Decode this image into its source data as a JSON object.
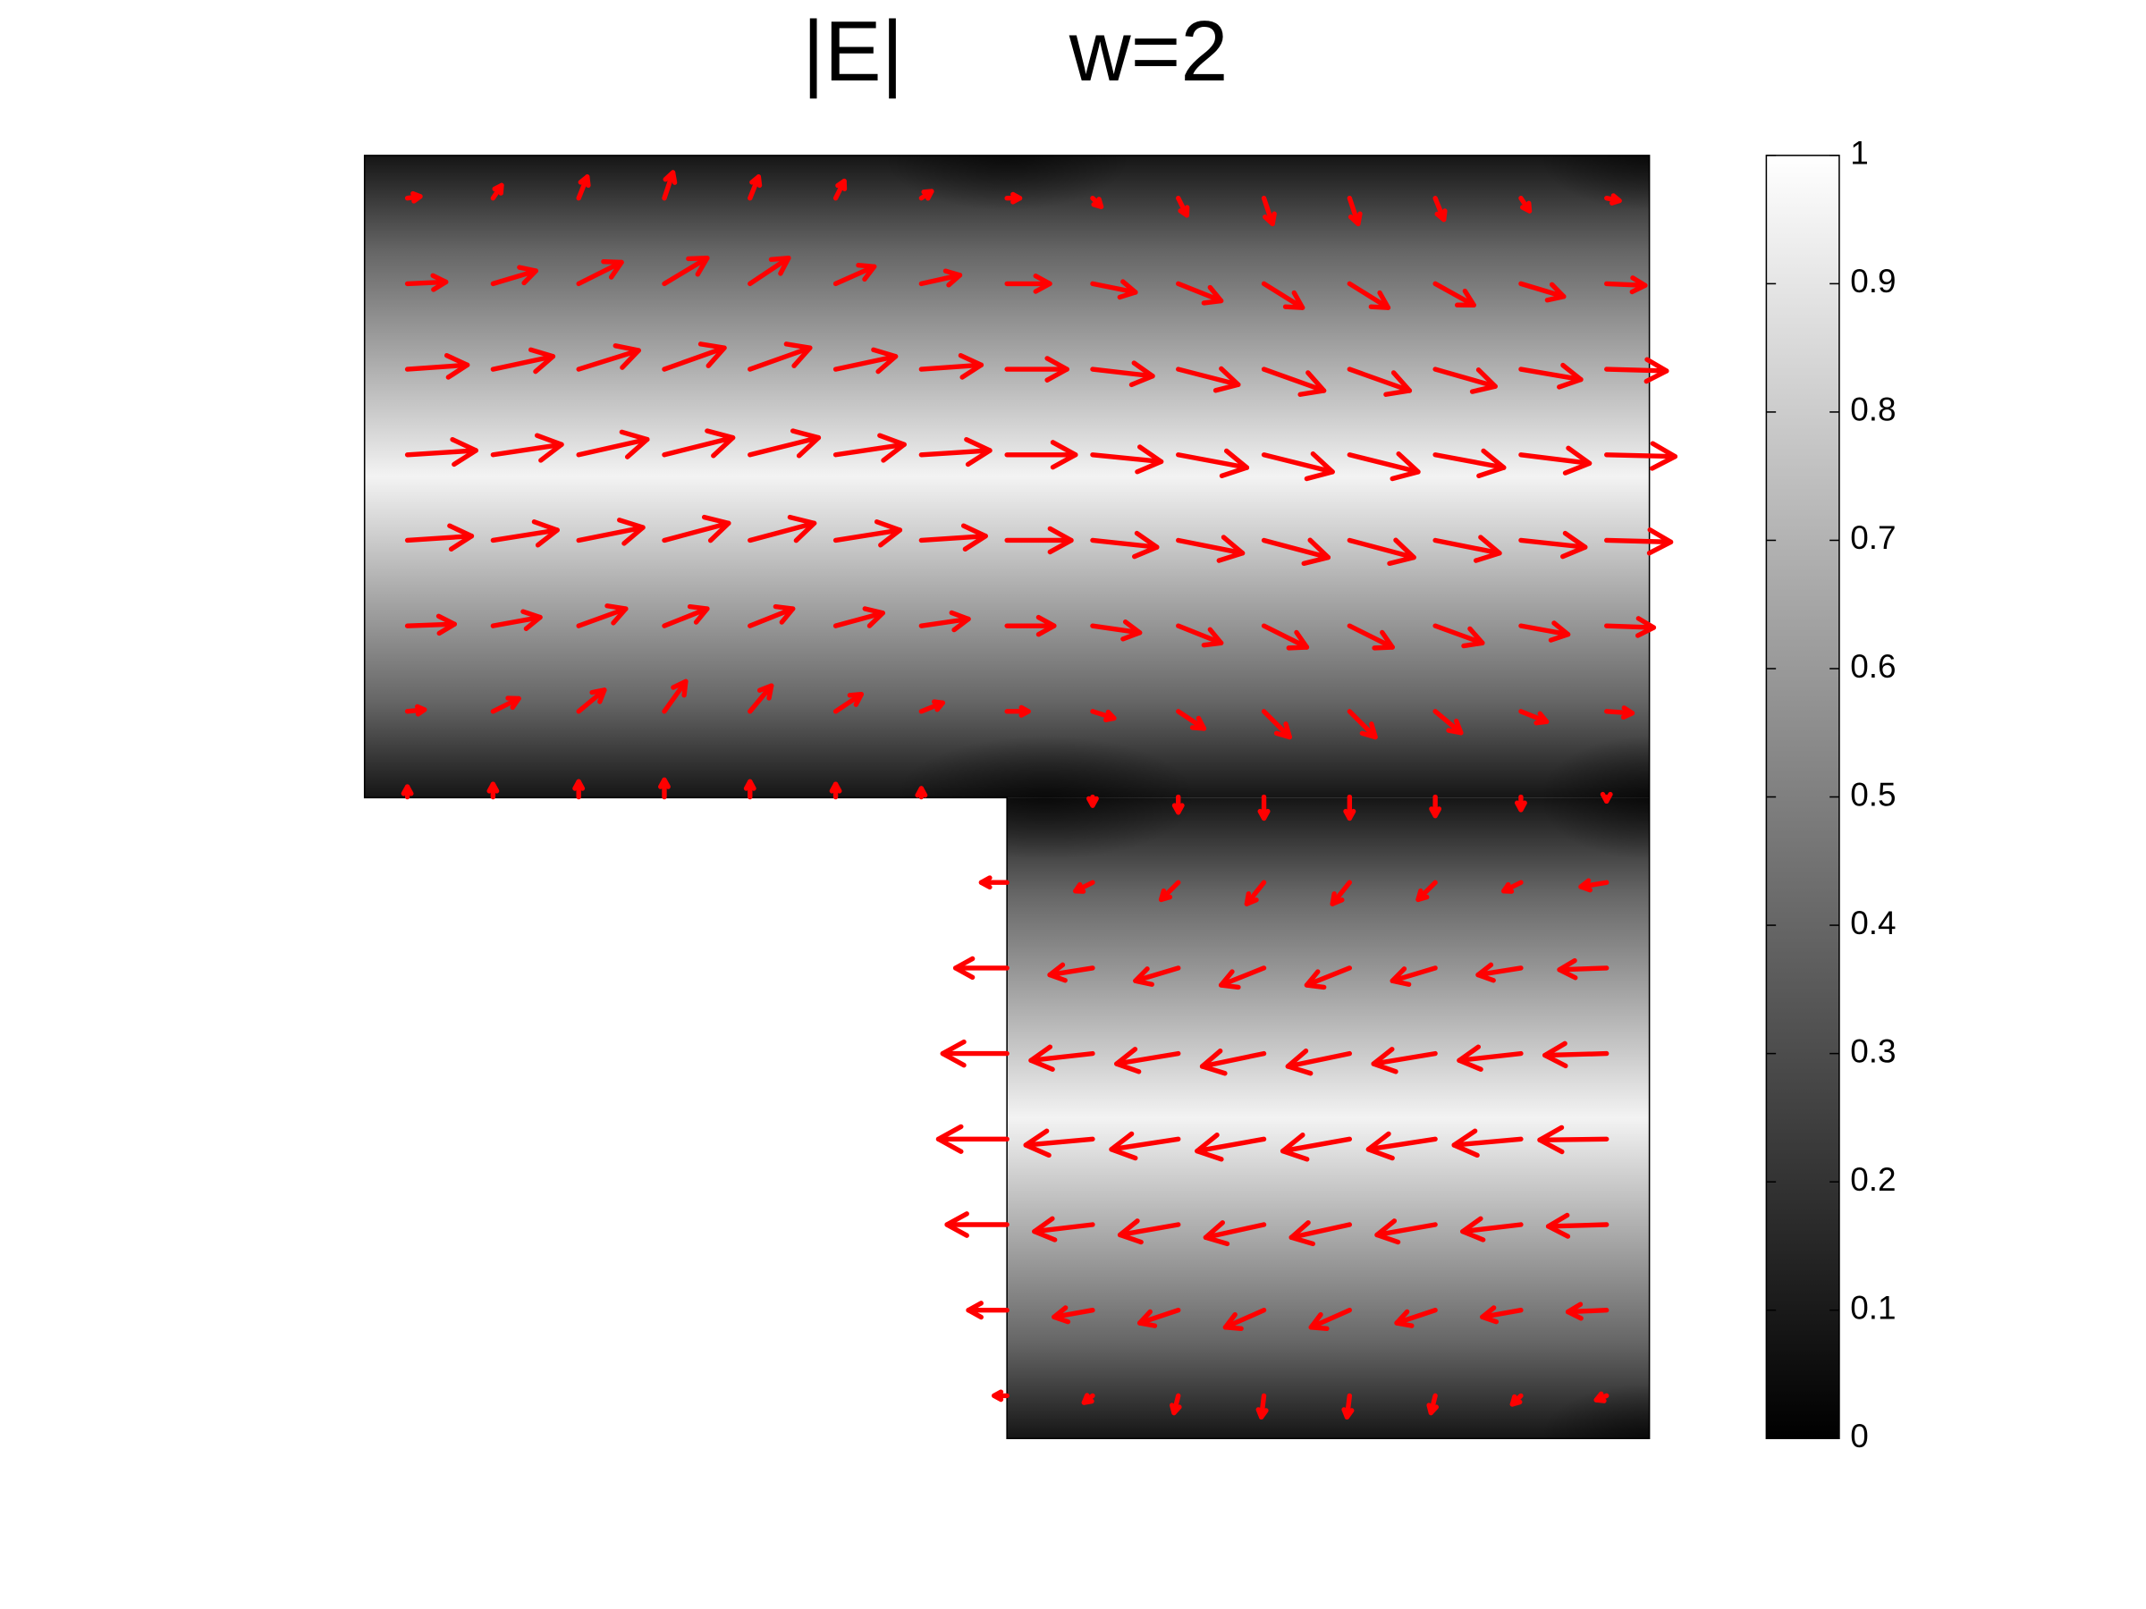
{
  "chart_data": {
    "type": "quiver",
    "title": [
      "|E|",
      "w=2"
    ],
    "color": "#ff0000",
    "colormap": "gray",
    "xlim": [
      0,
      15
    ],
    "ylim": [
      15,
      0
    ],
    "colorbar": {
      "lim": [
        0,
        1
      ],
      "ticks": [
        0,
        0.1,
        0.2,
        0.3,
        0.4,
        0.5,
        0.6,
        0.7,
        0.8,
        0.9,
        1
      ]
    },
    "rows": [
      {
        "y": 0.5,
        "x": [
          0.5,
          1.5,
          2.5,
          3.5,
          4.5,
          5.5,
          6.5,
          7.5,
          8.5,
          9.5,
          10.5,
          11.5,
          12.5,
          13.5,
          14.5
        ],
        "u": [
          0.15,
          0.1,
          0.1,
          0.1,
          0.1,
          0.1,
          0.12,
          0.15,
          0.1,
          0.1,
          0.1,
          0.1,
          0.1,
          0.1,
          0.15
        ],
        "v": [
          -0.02,
          -0.15,
          -0.25,
          -0.3,
          -0.25,
          -0.2,
          -0.08,
          0,
          0.1,
          0.2,
          0.3,
          0.3,
          0.25,
          0.15,
          0.03
        ]
      },
      {
        "y": 1.5,
        "x": [
          0.5,
          1.5,
          2.5,
          3.5,
          4.5,
          5.5,
          6.5,
          7.5,
          8.5,
          9.5,
          10.5,
          11.5,
          12.5,
          13.5,
          14.5
        ],
        "u": [
          0.45,
          0.5,
          0.5,
          0.5,
          0.45,
          0.45,
          0.45,
          0.5,
          0.5,
          0.5,
          0.45,
          0.45,
          0.45,
          0.5,
          0.45
        ],
        "v": [
          -0.02,
          -0.15,
          -0.25,
          -0.3,
          -0.3,
          -0.2,
          -0.1,
          0,
          0.1,
          0.2,
          0.28,
          0.28,
          0.25,
          0.15,
          0.02
        ]
      },
      {
        "y": 2.5,
        "x": [
          0.5,
          1.5,
          2.5,
          3.5,
          4.5,
          5.5,
          6.5,
          7.5,
          8.5,
          9.5,
          10.5,
          11.5,
          12.5,
          13.5,
          14.5
        ],
        "u": [
          0.7,
          0.7,
          0.7,
          0.7,
          0.7,
          0.7,
          0.7,
          0.7,
          0.7,
          0.7,
          0.7,
          0.7,
          0.7,
          0.7,
          0.7
        ],
        "v": [
          -0.05,
          -0.15,
          -0.22,
          -0.25,
          -0.25,
          -0.15,
          -0.05,
          0,
          0.08,
          0.18,
          0.25,
          0.25,
          0.2,
          0.12,
          0.02
        ]
      },
      {
        "y": 3.5,
        "x": [
          0.5,
          1.5,
          2.5,
          3.5,
          4.5,
          5.5,
          6.5,
          7.5,
          8.5,
          9.5,
          10.5,
          11.5,
          12.5,
          13.5,
          14.5
        ],
        "u": [
          0.8,
          0.8,
          0.8,
          0.8,
          0.8,
          0.8,
          0.8,
          0.8,
          0.8,
          0.8,
          0.8,
          0.8,
          0.8,
          0.8,
          0.8
        ],
        "v": [
          -0.05,
          -0.12,
          -0.18,
          -0.2,
          -0.2,
          -0.12,
          -0.05,
          0,
          0.08,
          0.15,
          0.2,
          0.2,
          0.15,
          0.1,
          0.02
        ]
      },
      {
        "y": 4.5,
        "x": [
          0.5,
          1.5,
          2.5,
          3.5,
          4.5,
          5.5,
          6.5,
          7.5,
          8.5,
          9.5,
          10.5,
          11.5,
          12.5,
          13.5,
          14.5
        ],
        "u": [
          0.75,
          0.75,
          0.75,
          0.75,
          0.75,
          0.75,
          0.75,
          0.75,
          0.75,
          0.75,
          0.75,
          0.75,
          0.75,
          0.75,
          0.75
        ],
        "v": [
          -0.05,
          -0.12,
          -0.15,
          -0.2,
          -0.2,
          -0.12,
          -0.05,
          0,
          0.08,
          0.15,
          0.2,
          0.2,
          0.15,
          0.08,
          0.02
        ]
      },
      {
        "y": 5.5,
        "x": [
          0.5,
          1.5,
          2.5,
          3.5,
          4.5,
          5.5,
          6.5,
          7.5,
          8.5,
          9.5,
          10.5,
          11.5,
          12.5,
          13.5,
          14.5
        ],
        "u": [
          0.55,
          0.55,
          0.55,
          0.5,
          0.5,
          0.55,
          0.55,
          0.55,
          0.55,
          0.5,
          0.5,
          0.5,
          0.55,
          0.55,
          0.55
        ],
        "v": [
          -0.02,
          -0.1,
          -0.2,
          -0.2,
          -0.2,
          -0.15,
          -0.08,
          0,
          0.08,
          0.2,
          0.25,
          0.25,
          0.2,
          0.1,
          0.02
        ]
      },
      {
        "y": 6.5,
        "x": [
          0.5,
          1.5,
          2.5,
          3.5,
          4.5,
          5.5,
          6.5,
          7.5,
          8.5,
          9.5,
          10.5,
          11.5,
          12.5,
          13.5,
          14.5
        ],
        "u": [
          0.2,
          0.3,
          0.3,
          0.25,
          0.25,
          0.3,
          0.25,
          0.25,
          0.25,
          0.3,
          0.3,
          0.3,
          0.3,
          0.3,
          0.3
        ],
        "v": [
          -0.02,
          -0.15,
          -0.25,
          -0.35,
          -0.3,
          -0.2,
          -0.1,
          0,
          0.08,
          0.2,
          0.3,
          0.3,
          0.25,
          0.12,
          0.02
        ]
      },
      {
        "y": 7.5,
        "x": [
          0.5,
          1.5,
          2.5,
          3.5,
          4.5,
          5.5,
          6.5,
          8.5,
          9.5,
          10.5,
          11.5,
          12.5,
          13.5,
          14.5
        ],
        "u": [
          0,
          0,
          0,
          0,
          0,
          0,
          0,
          0,
          0,
          0,
          0,
          0,
          0,
          0
        ],
        "v": [
          -0.12,
          -0.15,
          -0.18,
          -0.2,
          -0.18,
          -0.15,
          -0.1,
          0.1,
          0.18,
          0.25,
          0.25,
          0.22,
          0.15,
          0.05
        ]
      },
      {
        "y": 8.5,
        "x": [
          7.5,
          8.5,
          9.5,
          10.5,
          11.5,
          12.5,
          13.5,
          14.5
        ],
        "u": [
          -0.3,
          -0.2,
          -0.2,
          -0.2,
          -0.2,
          -0.2,
          -0.2,
          -0.3
        ],
        "v": [
          0,
          0.1,
          0.2,
          0.25,
          0.25,
          0.2,
          0.1,
          0.05
        ]
      },
      {
        "y": 9.5,
        "x": [
          7.5,
          8.5,
          9.5,
          10.5,
          11.5,
          12.5,
          13.5,
          14.5
        ],
        "u": [
          -0.6,
          -0.5,
          -0.5,
          -0.5,
          -0.5,
          -0.5,
          -0.5,
          -0.55
        ],
        "v": [
          0,
          0.08,
          0.15,
          0.2,
          0.2,
          0.15,
          0.08,
          0.02
        ]
      },
      {
        "y": 10.5,
        "x": [
          7.5,
          8.5,
          9.5,
          10.5,
          11.5,
          12.5,
          13.5,
          14.5
        ],
        "u": [
          -0.75,
          -0.72,
          -0.72,
          -0.72,
          -0.72,
          -0.72,
          -0.72,
          -0.72
        ],
        "v": [
          0,
          0.08,
          0.12,
          0.15,
          0.15,
          0.12,
          0.08,
          0.02
        ]
      },
      {
        "y": 11.5,
        "x": [
          7.5,
          8.5,
          9.5,
          10.5,
          11.5,
          12.5,
          13.5,
          14.5
        ],
        "u": [
          -0.8,
          -0.78,
          -0.78,
          -0.78,
          -0.78,
          -0.78,
          -0.78,
          -0.78
        ],
        "v": [
          0,
          0.07,
          0.12,
          0.14,
          0.14,
          0.12,
          0.07,
          0.01
        ]
      },
      {
        "y": 12.5,
        "x": [
          7.5,
          8.5,
          9.5,
          10.5,
          11.5,
          12.5,
          13.5,
          14.5
        ],
        "u": [
          -0.7,
          -0.68,
          -0.68,
          -0.68,
          -0.68,
          -0.68,
          -0.68,
          -0.68
        ],
        "v": [
          0,
          0.08,
          0.12,
          0.15,
          0.15,
          0.12,
          0.08,
          0.02
        ]
      },
      {
        "y": 13.5,
        "x": [
          7.5,
          8.5,
          9.5,
          10.5,
          11.5,
          12.5,
          13.5,
          14.5
        ],
        "u": [
          -0.45,
          -0.45,
          -0.45,
          -0.45,
          -0.45,
          -0.45,
          -0.45,
          -0.45
        ],
        "v": [
          0,
          0.08,
          0.15,
          0.2,
          0.2,
          0.15,
          0.08,
          0.02
        ]
      },
      {
        "y": 14.5,
        "x": [
          7.5,
          8.5,
          9.5,
          10.5,
          11.5,
          12.5,
          13.5,
          14.5
        ],
        "u": [
          -0.15,
          -0.1,
          -0.05,
          -0.03,
          -0.03,
          -0.05,
          -0.1,
          -0.12
        ],
        "v": [
          0,
          0.08,
          0.2,
          0.25,
          0.25,
          0.2,
          0.1,
          0.05
        ]
      }
    ]
  }
}
